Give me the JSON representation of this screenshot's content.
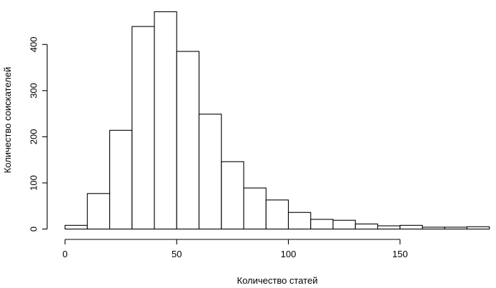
{
  "chart_data": {
    "type": "bar",
    "subtype": "histogram",
    "title": "",
    "xlabel": "Количество статей",
    "ylabel": "Количество соискателей",
    "bin_width": 10,
    "bins": [
      {
        "start": 0,
        "end": 10,
        "count": 8
      },
      {
        "start": 10,
        "end": 20,
        "count": 77
      },
      {
        "start": 20,
        "end": 30,
        "count": 214
      },
      {
        "start": 30,
        "end": 40,
        "count": 439
      },
      {
        "start": 40,
        "end": 50,
        "count": 471
      },
      {
        "start": 50,
        "end": 60,
        "count": 385
      },
      {
        "start": 60,
        "end": 70,
        "count": 249
      },
      {
        "start": 70,
        "end": 80,
        "count": 146
      },
      {
        "start": 80,
        "end": 90,
        "count": 89
      },
      {
        "start": 90,
        "end": 100,
        "count": 63
      },
      {
        "start": 100,
        "end": 110,
        "count": 36
      },
      {
        "start": 110,
        "end": 120,
        "count": 21
      },
      {
        "start": 120,
        "end": 130,
        "count": 19
      },
      {
        "start": 130,
        "end": 140,
        "count": 11
      },
      {
        "start": 140,
        "end": 150,
        "count": 7
      },
      {
        "start": 150,
        "end": 160,
        "count": 8
      },
      {
        "start": 160,
        "end": 170,
        "count": 4
      },
      {
        "start": 170,
        "end": 180,
        "count": 4
      },
      {
        "start": 180,
        "end": 190,
        "count": 5
      }
    ],
    "xlim": [
      0,
      190
    ],
    "ylim": [
      0,
      471
    ],
    "x_ticks": [
      0,
      50,
      100,
      150
    ],
    "y_ticks": [
      0,
      100,
      200,
      300,
      400
    ],
    "grid": false,
    "legend": "none"
  }
}
